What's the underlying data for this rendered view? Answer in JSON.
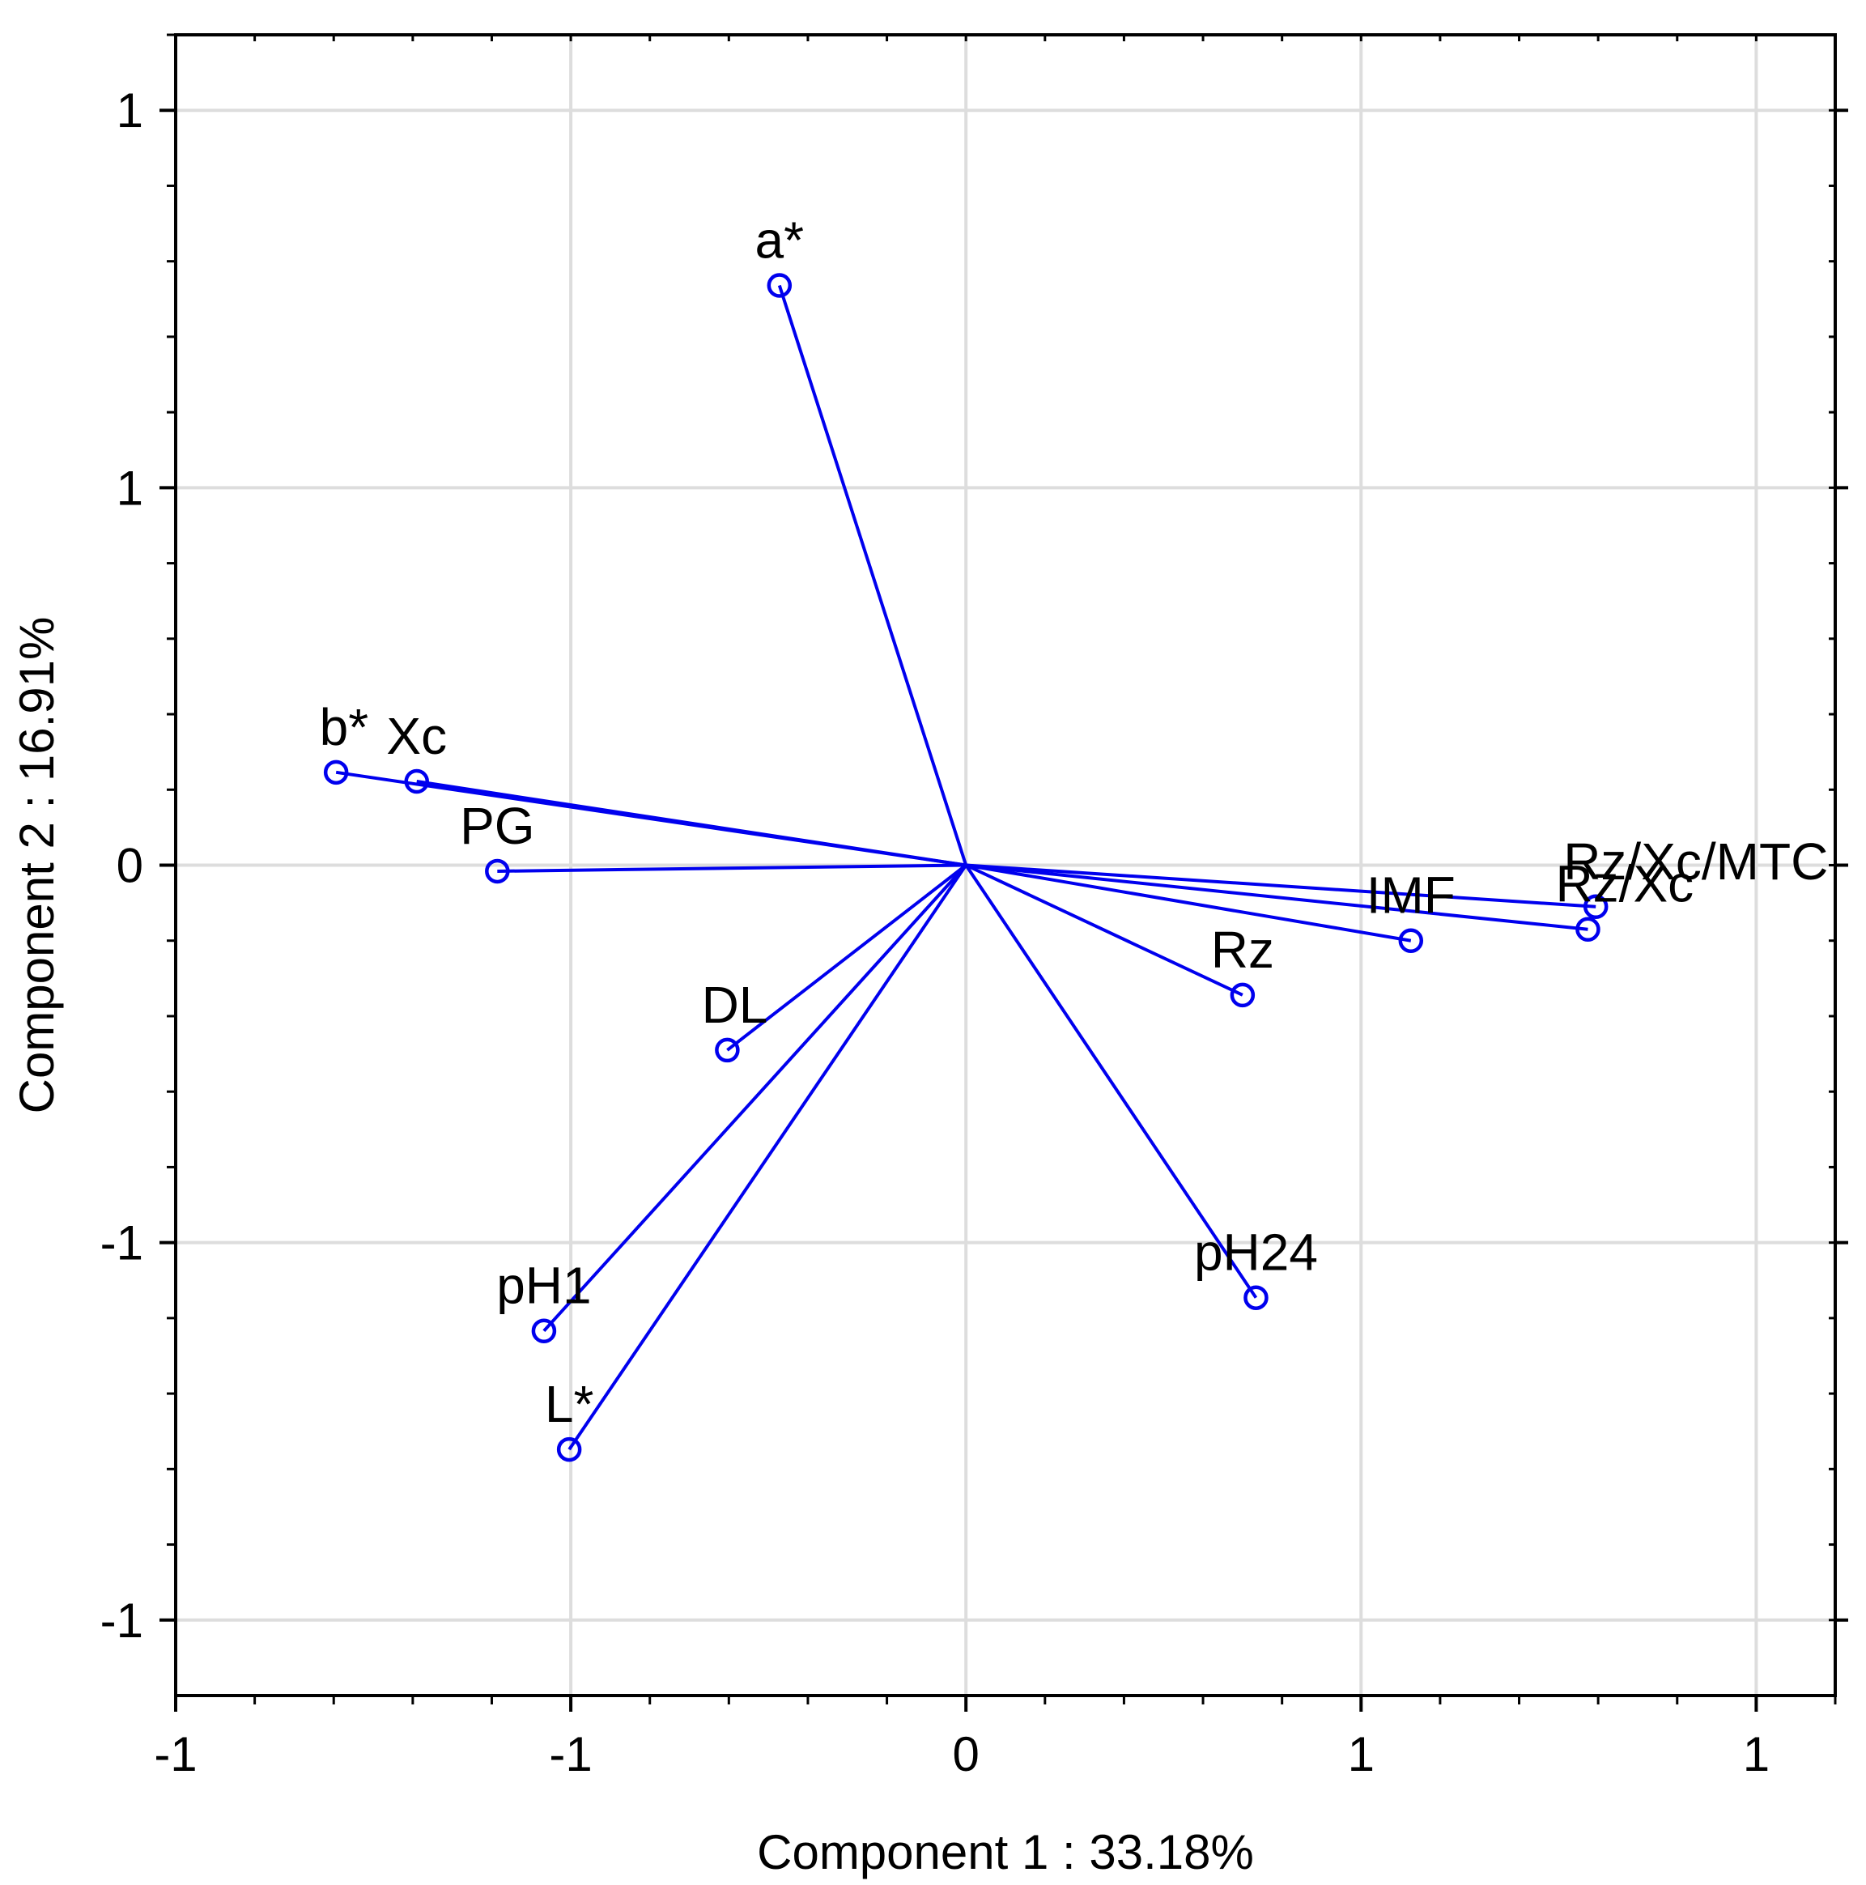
{
  "chart_data": {
    "type": "scatter",
    "subtype": "pca-loading-biplot",
    "title": "",
    "xlabel": "Component 1 : 33.18%",
    "ylabel": "Component 2 : 16.91%",
    "xlim": [
      -1.0,
      1.1
    ],
    "ylim": [
      -1.1,
      1.1
    ],
    "xticks": [
      {
        "value": -1.0,
        "label": "-1"
      },
      {
        "value": -0.5,
        "label": "-1"
      },
      {
        "value": 0.0,
        "label": "0"
      },
      {
        "value": 0.5,
        "label": "1"
      },
      {
        "value": 1.0,
        "label": "1"
      }
    ],
    "yticks": [
      {
        "value": 1.0,
        "label": "1"
      },
      {
        "value": 0.5,
        "label": "1"
      },
      {
        "value": 0.0,
        "label": "0"
      },
      {
        "value": -0.5,
        "label": "-1"
      },
      {
        "value": -1.0,
        "label": "-1"
      }
    ],
    "grid": true,
    "origin": [
      0,
      0
    ],
    "colors": {
      "vector": "#0000ee",
      "grid": "#dddddd",
      "axis": "#000000"
    },
    "points": [
      {
        "name": "a*",
        "x": -0.236,
        "y": 0.768,
        "label_pos": "above"
      },
      {
        "name": "b*",
        "x": -0.797,
        "y": 0.123,
        "label_pos": "above-left"
      },
      {
        "name": "Xc",
        "x": -0.695,
        "y": 0.111,
        "label_pos": "above"
      },
      {
        "name": "PG",
        "x": -0.593,
        "y": -0.008,
        "label_pos": "above"
      },
      {
        "name": "DL",
        "x": -0.302,
        "y": -0.245,
        "label_pos": "above-left"
      },
      {
        "name": "pH1",
        "x": -0.534,
        "y": -0.617,
        "label_pos": "above"
      },
      {
        "name": "L*",
        "x": -0.502,
        "y": -0.774,
        "label_pos": "above"
      },
      {
        "name": "Rz",
        "x": 0.35,
        "y": -0.172,
        "label_pos": "above"
      },
      {
        "name": "pH24",
        "x": 0.367,
        "y": -0.573,
        "label_pos": "above"
      },
      {
        "name": "IMF",
        "x": 0.563,
        "y": -0.1,
        "label_pos": "above"
      },
      {
        "name": "Rz/Xc",
        "x": 0.787,
        "y": -0.085,
        "label_pos": "above-right"
      },
      {
        "name": "Rz/Xc/MTC",
        "x": 0.797,
        "y": -0.055,
        "label_pos": "above-right"
      }
    ]
  }
}
